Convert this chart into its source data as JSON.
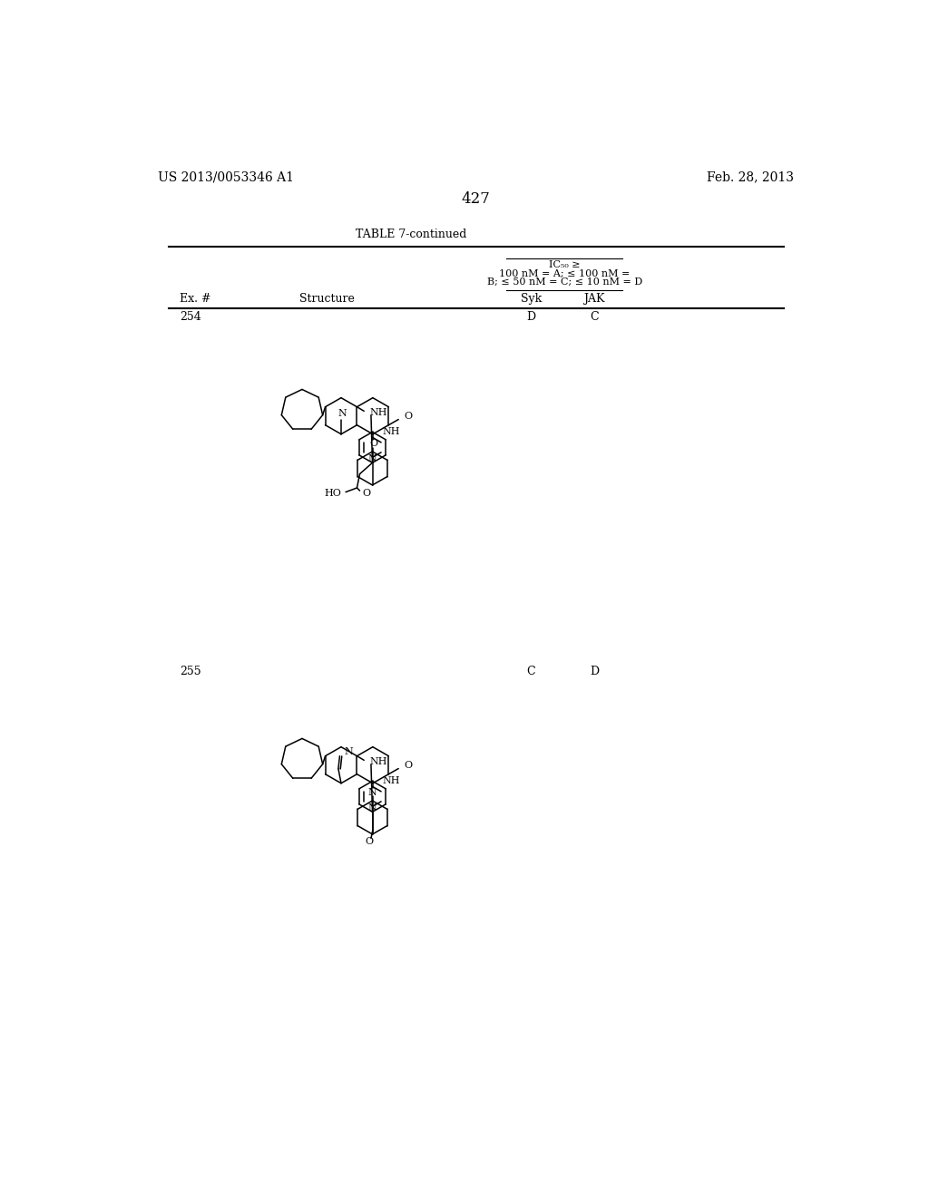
{
  "page_number": "427",
  "left_header": "US 2013/0053346 A1",
  "right_header": "Feb. 28, 2013",
  "table_title": "TABLE 7-continued",
  "ic50_line1": "IC₅₀ ≥",
  "ic50_line2": "100 nM = A; ≤ 100 nM =",
  "ic50_line3": "B; ≤ 50 nM = C; ≤ 10 nM = D",
  "col_ex": "Ex. #",
  "col_structure": "Structure",
  "col_syk": "Syk",
  "col_jak": "JAK",
  "row254_ex": "254",
  "row254_syk": "D",
  "row254_jak": "C",
  "row255_ex": "255",
  "row255_syk": "C",
  "row255_jak": "D",
  "bg": "#ffffff",
  "fg": "#000000"
}
